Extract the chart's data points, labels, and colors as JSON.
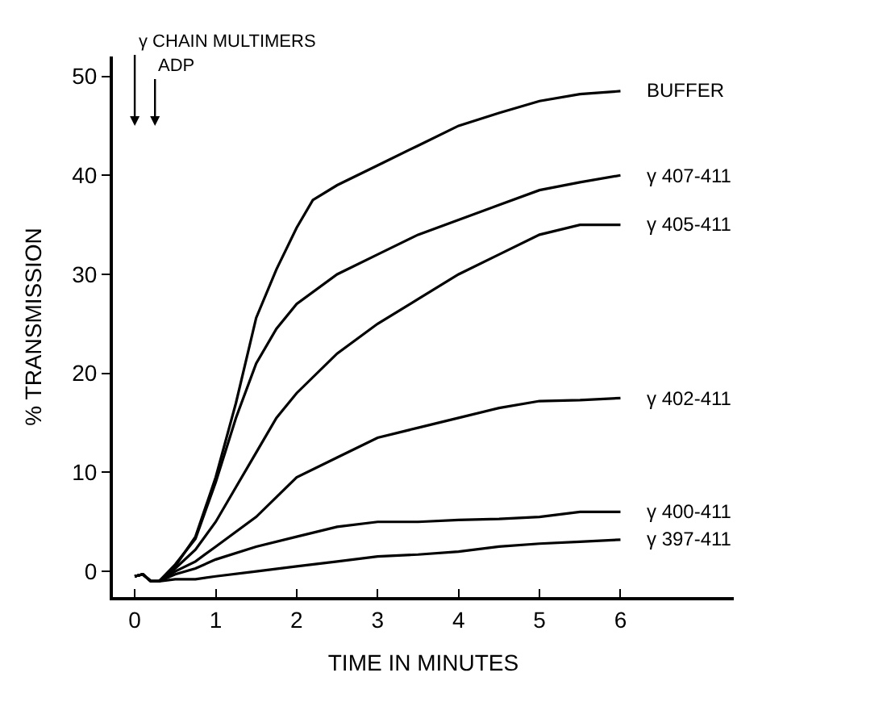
{
  "chart_data": {
    "type": "line",
    "xlabel": "TIME IN MINUTES",
    "ylabel": "% TRANSMISSION",
    "xlim": [
      -0.27,
      7.4
    ],
    "ylim": [
      -2.6,
      52
    ],
    "xticks": [
      0,
      1,
      2,
      3,
      4,
      5,
      6
    ],
    "yticks": [
      0,
      10,
      20,
      30,
      40,
      50
    ],
    "legend": false,
    "marker": "none",
    "line_style": "solid",
    "annotations": [
      "γ CHAIN MULTIMERS",
      "ADP"
    ],
    "series": [
      {
        "name": "BUFFER",
        "color": "#000000",
        "x": [
          0,
          0.1,
          0.2,
          0.3,
          0.5,
          0.75,
          1,
          1.25,
          1.5,
          1.75,
          2,
          2.2,
          2.5,
          3,
          3.5,
          4,
          4.5,
          5,
          5.5,
          6
        ],
        "values": [
          -0.5,
          -0.3,
          -1,
          -1,
          0.5,
          3.5,
          9.5,
          17,
          25.6,
          30.5,
          34.7,
          37.5,
          39,
          41,
          43,
          45,
          46.3,
          47.5,
          48.2,
          48.5
        ]
      },
      {
        "name": "γ 407-411",
        "color": "#000000",
        "x": [
          0,
          0.1,
          0.2,
          0.3,
          0.5,
          0.75,
          1,
          1.25,
          1.5,
          1.75,
          2,
          2.5,
          3,
          3.5,
          4,
          4.5,
          5,
          5.5,
          6
        ],
        "values": [
          -0.5,
          -0.3,
          -1,
          -1,
          0.7,
          3.3,
          9,
          15.5,
          21,
          24.5,
          27,
          30,
          32,
          34,
          35.5,
          37,
          38.5,
          39.3,
          40
        ]
      },
      {
        "name": "γ 405-411",
        "color": "#000000",
        "x": [
          0,
          0.1,
          0.2,
          0.3,
          0.5,
          0.75,
          1,
          1.25,
          1.5,
          1.75,
          2,
          2.5,
          3,
          3.5,
          4,
          4.5,
          5,
          5.5,
          6
        ],
        "values": [
          -0.5,
          -0.3,
          -1,
          -1,
          0.3,
          2.2,
          5,
          8.5,
          12,
          15.5,
          18,
          22,
          25,
          27.5,
          30,
          32,
          34,
          35,
          35
        ]
      },
      {
        "name": "γ 402-411",
        "color": "#000000",
        "x": [
          0,
          0.1,
          0.2,
          0.3,
          0.5,
          0.75,
          1,
          1.5,
          2,
          2.5,
          3,
          3.5,
          4,
          4.5,
          5,
          5.5,
          6
        ],
        "values": [
          -0.5,
          -0.3,
          -1,
          -1,
          0,
          1,
          2.5,
          5.5,
          9.5,
          11.5,
          13.5,
          14.5,
          15.5,
          16.5,
          17.2,
          17.3,
          17.5
        ]
      },
      {
        "name": "γ 400-411",
        "color": "#000000",
        "x": [
          0,
          0.1,
          0.2,
          0.3,
          0.5,
          0.75,
          1,
          1.5,
          2,
          2.5,
          3,
          3.5,
          4,
          4.5,
          5,
          5.5,
          6
        ],
        "values": [
          -0.5,
          -0.3,
          -1,
          -1,
          -0.3,
          0.3,
          1.2,
          2.5,
          3.5,
          4.5,
          5,
          5,
          5.2,
          5.3,
          5.5,
          6,
          6
        ]
      },
      {
        "name": "γ 397-411",
        "color": "#000000",
        "x": [
          0,
          0.1,
          0.2,
          0.3,
          0.5,
          0.75,
          1,
          1.5,
          2,
          2.5,
          3,
          3.5,
          4,
          4.5,
          5,
          5.5,
          6
        ],
        "values": [
          -0.5,
          -0.3,
          -1,
          -1,
          -0.8,
          -0.8,
          -0.5,
          0,
          0.5,
          1,
          1.5,
          1.7,
          2,
          2.5,
          2.8,
          3,
          3.2
        ]
      }
    ]
  }
}
